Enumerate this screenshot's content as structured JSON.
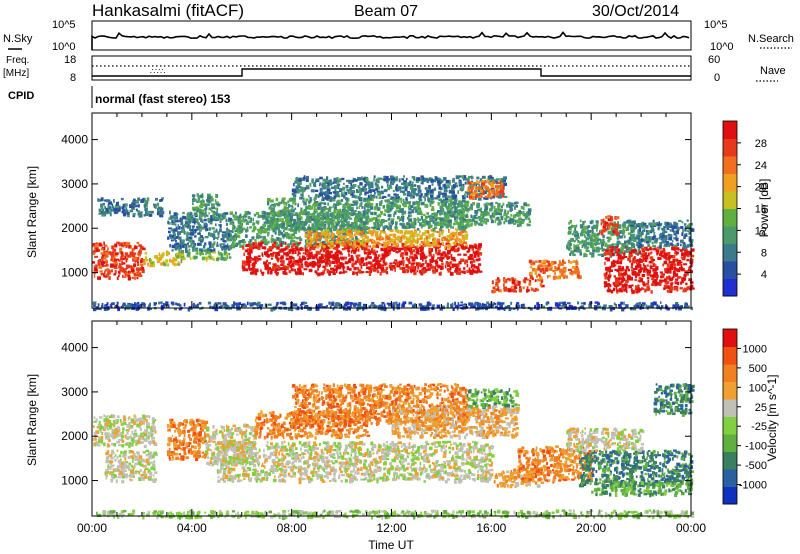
{
  "header": {
    "station": "Hankasalmi (fitACF)",
    "beam": "Beam 07",
    "date": "30/Oct/2014"
  },
  "top_panels": {
    "nsky_label": "N.Sky",
    "nsearch_label": "N.Search",
    "nsky_ticks": [
      "10^5",
      "10^0"
    ],
    "nsearch_ticks": [
      "10^5",
      "10^0"
    ],
    "freq_label_1": "Freq.",
    "freq_label_2": "[MHz]",
    "freq_ticks": [
      "18",
      "8"
    ],
    "nave_label": "Nave",
    "nave_ticks": [
      "60",
      "0"
    ],
    "cpid_label": "CPID",
    "cpid_text": "normal (fast stereo) 153"
  },
  "chart_data": [
    {
      "type": "heatmap",
      "name": "power",
      "ylabel": "Slant Range [km]",
      "yticks": [
        "1000",
        "2000",
        "3000",
        "4000"
      ],
      "ylim": [
        200,
        4600
      ],
      "xlim_hours": [
        0,
        24
      ],
      "colorbar": {
        "label": "Power [dB]",
        "ticks": [
          "28",
          "24",
          "20",
          "16",
          "12",
          "8",
          "4"
        ],
        "colors": [
          "#2030d0",
          "#2850a0",
          "#3a7a8a",
          "#4a9a6a",
          "#60b040",
          "#c8c020",
          "#f0a020",
          "#f07020",
          "#e83a1a",
          "#e01010"
        ]
      },
      "bands": [
        {
          "x0": 0.0,
          "x1": 2.0,
          "y0": 900,
          "y1": 1700,
          "level": 8
        },
        {
          "x0": 0.2,
          "x1": 2.8,
          "y0": 2300,
          "y1": 2700,
          "level": 2
        },
        {
          "x0": 2.0,
          "x1": 3.5,
          "y0": 1200,
          "y1": 1500,
          "level": 5
        },
        {
          "x0": 3.0,
          "x1": 5.5,
          "y0": 1500,
          "y1": 2400,
          "level": 2
        },
        {
          "x0": 3.5,
          "x1": 5.5,
          "y0": 1300,
          "y1": 1500,
          "level": 4
        },
        {
          "x0": 4.0,
          "x1": 5.0,
          "y0": 2300,
          "y1": 2800,
          "level": 3
        },
        {
          "x0": 5.5,
          "x1": 11.0,
          "y0": 1600,
          "y1": 2400,
          "level": 3
        },
        {
          "x0": 6.0,
          "x1": 15.5,
          "y0": 1000,
          "y1": 1700,
          "level": 9
        },
        {
          "x0": 8.5,
          "x1": 15.0,
          "y0": 1600,
          "y1": 2000,
          "level": 6
        },
        {
          "x0": 7.0,
          "x1": 15.0,
          "y0": 2000,
          "y1": 2700,
          "level": 3
        },
        {
          "x0": 8.0,
          "x1": 16.5,
          "y0": 2700,
          "y1": 3200,
          "level": 2
        },
        {
          "x0": 15.0,
          "x1": 16.5,
          "y0": 2700,
          "y1": 3100,
          "level": 7
        },
        {
          "x0": 14.0,
          "x1": 17.5,
          "y0": 2100,
          "y1": 2600,
          "level": 3
        },
        {
          "x0": 16.0,
          "x1": 18.0,
          "y0": 600,
          "y1": 900,
          "level": 8
        },
        {
          "x0": 17.5,
          "x1": 19.5,
          "y0": 900,
          "y1": 1300,
          "level": 7
        },
        {
          "x0": 19.0,
          "x1": 22.0,
          "y0": 1400,
          "y1": 2200,
          "level": 3
        },
        {
          "x0": 20.3,
          "x1": 21.0,
          "y0": 1900,
          "y1": 2300,
          "level": 8
        },
        {
          "x0": 20.5,
          "x1": 24.0,
          "y0": 600,
          "y1": 1600,
          "level": 9
        },
        {
          "x0": 21.5,
          "x1": 24.0,
          "y0": 1600,
          "y1": 2200,
          "level": 2
        },
        {
          "x0": 0.0,
          "x1": 24.0,
          "y0": 200,
          "y1": 350,
          "level": 1
        }
      ]
    },
    {
      "type": "heatmap",
      "name": "velocity",
      "ylabel": "Slant Range [km]",
      "yticks": [
        "1000",
        "2000",
        "3000",
        "4000"
      ],
      "ylim": [
        200,
        4600
      ],
      "xlim_hours": [
        0,
        24
      ],
      "colorbar": {
        "label": "Velocity [m s^-1]",
        "ticks": [
          "1000",
          "500",
          "100",
          "25",
          "-25",
          "-100",
          "-500",
          "-1000"
        ],
        "colors": [
          "#1030c0",
          "#2860a0",
          "#3a8060",
          "#60b040",
          "#80d040",
          "#c0c0b8",
          "#f0a030",
          "#f08020",
          "#f05010",
          "#e01010"
        ]
      },
      "bands": [
        {
          "x0": 0.0,
          "x1": 2.5,
          "y0": 1800,
          "y1": 2500,
          "level": 5
        },
        {
          "x0": 0.5,
          "x1": 2.5,
          "y0": 1000,
          "y1": 1700,
          "level": 5
        },
        {
          "x0": 3.0,
          "x1": 4.5,
          "y0": 1500,
          "y1": 2400,
          "level": 7
        },
        {
          "x0": 4.5,
          "x1": 6.5,
          "y0": 1400,
          "y1": 2300,
          "level": 5
        },
        {
          "x0": 5.0,
          "x1": 16.0,
          "y0": 1000,
          "y1": 1900,
          "level": 5
        },
        {
          "x0": 6.5,
          "x1": 11.0,
          "y0": 2000,
          "y1": 2600,
          "level": 7
        },
        {
          "x0": 8.0,
          "x1": 15.0,
          "y0": 2300,
          "y1": 3200,
          "level": 7
        },
        {
          "x0": 12.0,
          "x1": 17.0,
          "y0": 2000,
          "y1": 2700,
          "level": 6
        },
        {
          "x0": 15.0,
          "x1": 17.0,
          "y0": 2700,
          "y1": 3100,
          "level": 3
        },
        {
          "x0": 16.0,
          "x1": 18.0,
          "y0": 900,
          "y1": 1300,
          "level": 6
        },
        {
          "x0": 17.0,
          "x1": 20.0,
          "y0": 1000,
          "y1": 1800,
          "level": 7
        },
        {
          "x0": 19.5,
          "x1": 24.0,
          "y0": 900,
          "y1": 1700,
          "level": 2
        },
        {
          "x0": 20.0,
          "x1": 24.0,
          "y0": 700,
          "y1": 1000,
          "level": 3
        },
        {
          "x0": 19.0,
          "x1": 22.0,
          "y0": 1700,
          "y1": 2200,
          "level": 5
        },
        {
          "x0": 22.5,
          "x1": 24.0,
          "y0": 2500,
          "y1": 3200,
          "level": 2
        },
        {
          "x0": 0.0,
          "x1": 24.0,
          "y0": 200,
          "y1": 350,
          "level": 4
        }
      ]
    }
  ],
  "time_axis": {
    "ticks": [
      "00:00",
      "04:00",
      "08:00",
      "12:00",
      "16:00",
      "20:00",
      "00:00"
    ],
    "label": "Time UT"
  }
}
